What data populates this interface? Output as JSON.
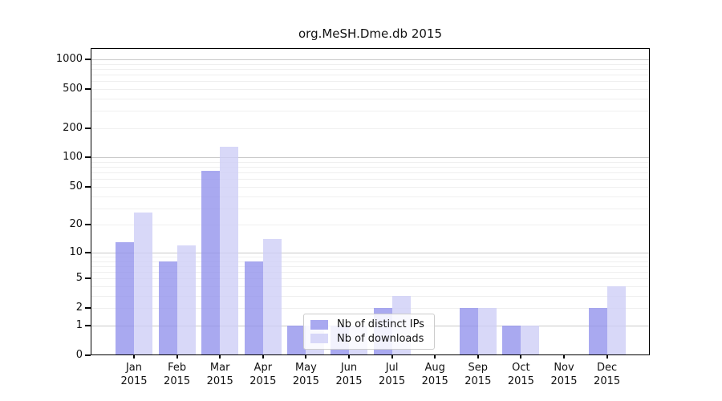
{
  "chart_data": {
    "type": "bar",
    "title": "org.MeSH.Dme.db 2015",
    "categories": [
      {
        "month": "Jan",
        "year": "2015"
      },
      {
        "month": "Feb",
        "year": "2015"
      },
      {
        "month": "Mar",
        "year": "2015"
      },
      {
        "month": "Apr",
        "year": "2015"
      },
      {
        "month": "May",
        "year": "2015"
      },
      {
        "month": "Jun",
        "year": "2015"
      },
      {
        "month": "Jul",
        "year": "2015"
      },
      {
        "month": "Aug",
        "year": "2015"
      },
      {
        "month": "Sep",
        "year": "2015"
      },
      {
        "month": "Oct",
        "year": "2015"
      },
      {
        "month": "Nov",
        "year": "2015"
      },
      {
        "month": "Dec",
        "year": "2015"
      }
    ],
    "series": [
      {
        "name": "Nb of distinct IPs",
        "color": "rgba(148,148,236,0.8)",
        "values": [
          13,
          8,
          73,
          8,
          1,
          1,
          2,
          0,
          2,
          1,
          0,
          2
        ]
      },
      {
        "name": "Nb of downloads",
        "color": "rgba(206,206,246,0.8)",
        "values": [
          27,
          12,
          130,
          14,
          1,
          1,
          3,
          0,
          2,
          1,
          0,
          4
        ]
      }
    ],
    "y_ticks": [
      0,
      1,
      2,
      5,
      10,
      20,
      50,
      100,
      200,
      500,
      1000
    ],
    "y_major_gridlines": [
      1,
      10,
      100,
      1000
    ],
    "y_minor_gridlines": [
      2,
      3,
      4,
      5,
      6,
      7,
      8,
      9,
      20,
      30,
      40,
      50,
      60,
      70,
      80,
      90,
      200,
      300,
      400,
      500,
      600,
      700,
      800,
      900
    ],
    "y_scale": "log10(value+1)",
    "y_max": 1300,
    "grid": true,
    "legend": {
      "position": "inside-bottom-center",
      "labels": [
        "Nb of distinct IPs",
        "Nb of downloads"
      ]
    }
  },
  "colors": {
    "background": "#ffffff",
    "axis": "#000000",
    "text": "#111111",
    "major_grid": "#c9c9c9",
    "minor_grid": "#efefef",
    "legend_border": "#cccccc",
    "legend_background": "rgba(255,255,255,0.85)"
  }
}
